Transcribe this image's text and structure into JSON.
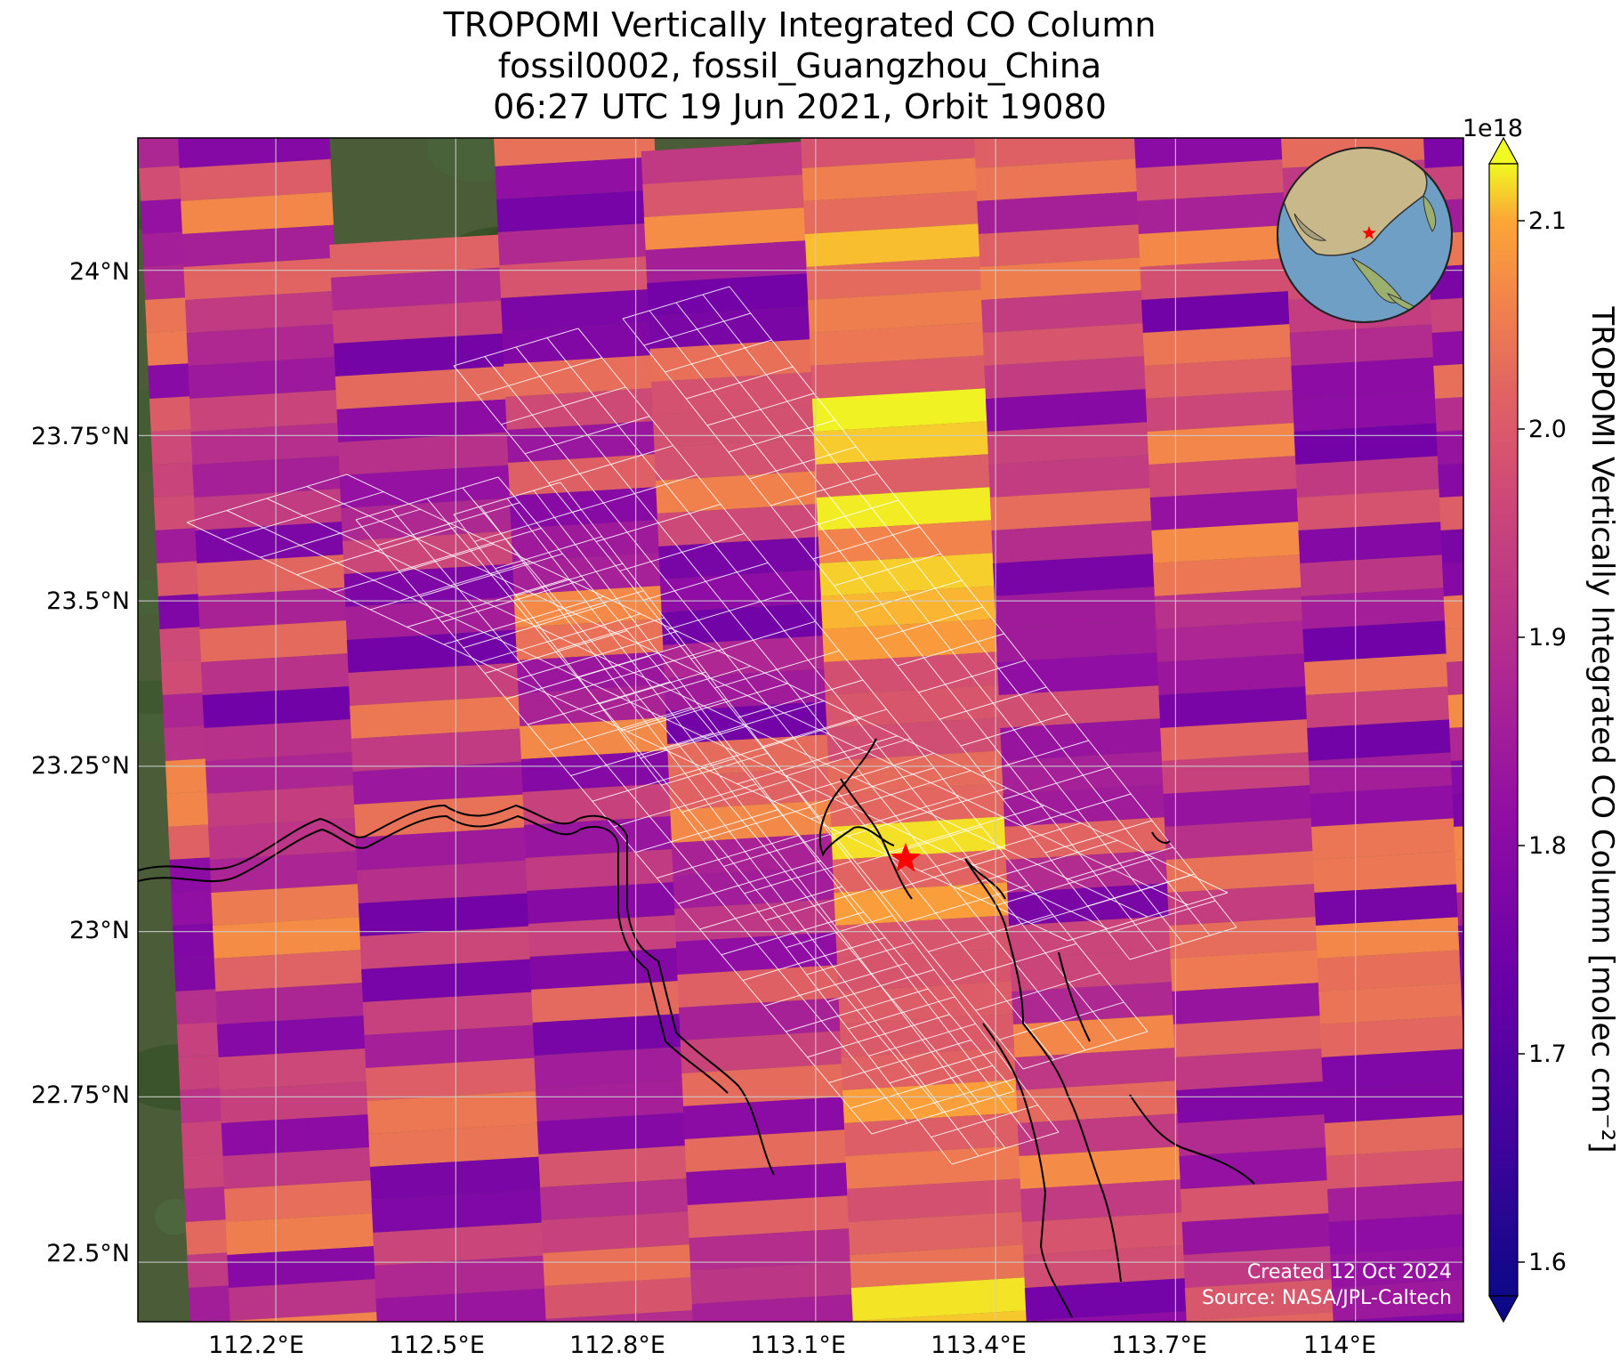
{
  "title": {
    "line1": "TROPOMI Vertically Integrated CO Column",
    "line2": "fossil0002, fossil_Guangzhou_China",
    "line3": "06:27 UTC 19 Jun 2021, Orbit 19080"
  },
  "map": {
    "lon_ticks": [
      "112.2°E",
      "112.5°E",
      "112.8°E",
      "113.1°E",
      "113.4°E",
      "113.7°E",
      "114°E"
    ],
    "lat_ticks": [
      "24°N",
      "23.75°N",
      "23.5°N",
      "23.25°N",
      "23°N",
      "22.75°N",
      "22.5°N"
    ],
    "lon_range": [
      111.97,
      114.18
    ],
    "lat_range": [
      22.41,
      24.2
    ],
    "target_marker": {
      "name": "fossil_Guangzhou_China",
      "lon": 113.25,
      "lat": 23.11,
      "color": "#ff0000"
    },
    "inset_globe": {
      "projection": "orthographic",
      "marker_color": "#ff0000"
    },
    "credit_line1": "Created 12 Oct 2024",
    "credit_line2": "Source: NASA/JPL-Caltech"
  },
  "colorbar": {
    "label": "TROPOMI Vertically Integrated CO Column [molec cm⁻²]",
    "multiplier": "1e18",
    "colormap": "plasma",
    "min": 1.6,
    "max": 2.1,
    "ticks": [
      "1.6",
      "1.7",
      "1.8",
      "1.9",
      "2.0",
      "2.1"
    ],
    "extend": "both"
  }
}
